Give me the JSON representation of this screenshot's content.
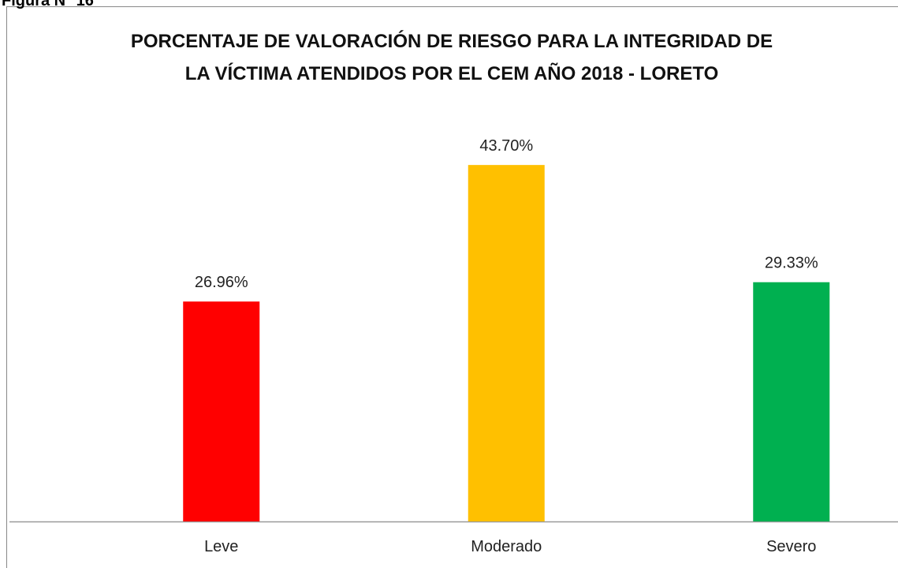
{
  "chart_data": {
    "type": "bar",
    "caption": "Figura N° 16",
    "title": [
      "PORCENTAJE DE VALORACIÓN DE RIESGO PARA LA INTEGRIDAD DE",
      "LA VÍCTIMA ATENDIDOS POR EL CEM AÑO 2018 - LORETO"
    ],
    "categories": [
      "Leve",
      "Moderado",
      "Severo"
    ],
    "values": [
      26.96,
      43.7,
      29.33
    ],
    "value_labels": [
      "26.96%",
      "43.70%",
      "29.33%"
    ],
    "colors": [
      "#ff0000",
      "#ffc000",
      "#00b050"
    ],
    "ylim": [
      0,
      50
    ]
  }
}
